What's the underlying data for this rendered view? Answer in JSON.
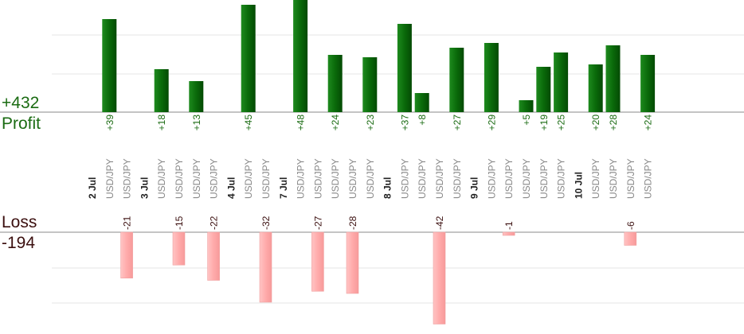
{
  "summary": {
    "profit_total": "+432",
    "profit_label": "Profit",
    "loss_label": "Loss",
    "loss_total": "-194"
  },
  "colors": {
    "profit_bar": "#0e6b0e",
    "profit_text": "#1a6b12",
    "loss_bar": "#ffb3b3",
    "loss_text": "#3b0f0f",
    "date_text": "#222222",
    "pair_text": "#888888",
    "grid": "#e6e6e6",
    "axis": "#888888"
  },
  "chart_data": {
    "type": "bar",
    "profit_ylim": [
      0,
      60
    ],
    "loss_ylim": [
      0,
      48
    ],
    "columns": [
      {
        "kind": "date",
        "label": "2 Jul"
      },
      {
        "kind": "trade",
        "label": "USD/JPY",
        "profit": 39
      },
      {
        "kind": "trade",
        "label": "USD/JPY",
        "loss": -21
      },
      {
        "kind": "date",
        "label": "3 Jul"
      },
      {
        "kind": "trade",
        "label": "USD/JPY",
        "profit": 18
      },
      {
        "kind": "trade",
        "label": "USD/JPY",
        "loss": -15
      },
      {
        "kind": "trade",
        "label": "USD/JPY",
        "profit": 13
      },
      {
        "kind": "trade",
        "label": "USD/JPY",
        "loss": -22
      },
      {
        "kind": "date",
        "label": "4 Jul"
      },
      {
        "kind": "trade",
        "label": "USD/JPY",
        "profit": 45
      },
      {
        "kind": "trade",
        "label": "USD/JPY",
        "loss": -32
      },
      {
        "kind": "date",
        "label": "7 Jul"
      },
      {
        "kind": "trade",
        "label": "USD/JPY",
        "profit": 48
      },
      {
        "kind": "trade",
        "label": "USD/JPY",
        "loss": -27
      },
      {
        "kind": "trade",
        "label": "USD/JPY",
        "profit": 24
      },
      {
        "kind": "trade",
        "label": "USD/JPY",
        "loss": -28
      },
      {
        "kind": "trade",
        "label": "USD/JPY",
        "profit": 23
      },
      {
        "kind": "date",
        "label": "8 Jul"
      },
      {
        "kind": "trade",
        "label": "USD/JPY",
        "profit": 37
      },
      {
        "kind": "trade",
        "label": "USD/JPY",
        "profit": 8
      },
      {
        "kind": "trade",
        "label": "USD/JPY",
        "loss": -42
      },
      {
        "kind": "trade",
        "label": "USD/JPY",
        "profit": 27
      },
      {
        "kind": "date",
        "label": "9 Jul"
      },
      {
        "kind": "trade",
        "label": "USD/JPY",
        "profit": 29
      },
      {
        "kind": "trade",
        "label": "USD/JPY",
        "loss": -1
      },
      {
        "kind": "trade",
        "label": "USD/JPY",
        "profit": 5
      },
      {
        "kind": "trade",
        "label": "USD/JPY",
        "profit": 19
      },
      {
        "kind": "trade",
        "label": "USD/JPY",
        "profit": 25
      },
      {
        "kind": "date",
        "label": "10 Jul"
      },
      {
        "kind": "trade",
        "label": "USD/JPY",
        "profit": 20
      },
      {
        "kind": "trade",
        "label": "USD/JPY",
        "profit": 28
      },
      {
        "kind": "trade",
        "label": "USD/JPY",
        "loss": -6
      },
      {
        "kind": "trade",
        "label": "USD/JPY",
        "profit": 24
      }
    ]
  }
}
